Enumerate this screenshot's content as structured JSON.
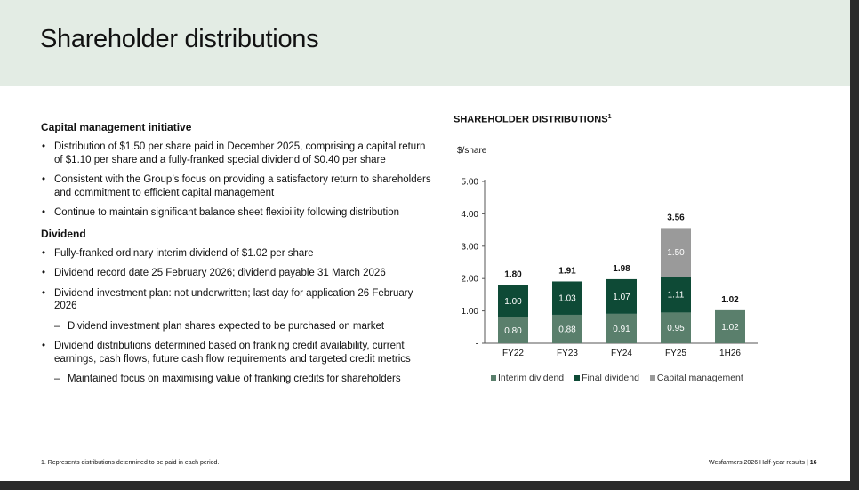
{
  "header": {
    "title": "Shareholder distributions"
  },
  "left": {
    "sections": [
      {
        "heading": "Capital management initiative",
        "items": [
          {
            "kind": "bullet",
            "text": "Distribution of $1.50 per share paid in December 2025, comprising a capital return of $1.10 per share and a fully-franked special dividend of $0.40 per share"
          },
          {
            "kind": "bullet",
            "text": "Consistent with the Group’s focus on providing a satisfactory return to shareholders and commitment to efficient capital management"
          },
          {
            "kind": "bullet",
            "text": "Continue to maintain significant balance sheet flexibility following distribution"
          }
        ]
      },
      {
        "heading": "Dividend",
        "items": [
          {
            "kind": "bullet",
            "text": "Fully-franked ordinary interim dividend of $1.02 per share"
          },
          {
            "kind": "bullet",
            "text": "Dividend record date 25 February 2026; dividend payable 31 March 2026"
          },
          {
            "kind": "bullet",
            "text": "Dividend investment plan: not underwritten; last day for application 26 February 2026"
          },
          {
            "kind": "dash",
            "text": "Dividend investment plan shares expected to be purchased on market"
          },
          {
            "kind": "bullet",
            "text": "Dividend distributions determined based on franking credit availability, current earnings, cash flows, future cash flow requirements and targeted credit metrics"
          },
          {
            "kind": "dash",
            "text": "Maintained focus on maximising value of franking credits for shareholders"
          }
        ]
      }
    ]
  },
  "chart_data": {
    "type": "bar",
    "stacked": true,
    "title": "SHAREHOLDER DISTRIBUTIONS",
    "title_sup": "1",
    "ylabel": "$/share",
    "ylim": [
      0,
      5
    ],
    "yticks": [
      "-",
      "1.00",
      "2.00",
      "3.00",
      "4.00",
      "5.00"
    ],
    "categories": [
      "FY22",
      "FY23",
      "FY24",
      "FY25",
      "1H26"
    ],
    "series": [
      {
        "name": "Interim dividend",
        "color": "#5a7f6c",
        "values": [
          0.8,
          0.88,
          0.91,
          0.95,
          1.02
        ],
        "labels": [
          "0.80",
          "0.88",
          "0.91",
          "0.95",
          "1.02"
        ]
      },
      {
        "name": "Final dividend",
        "color": "#0e4a36",
        "values": [
          1.0,
          1.03,
          1.07,
          1.11,
          0
        ],
        "labels": [
          "1.00",
          "1.03",
          "1.07",
          "1.11",
          ""
        ]
      },
      {
        "name": "Capital management",
        "color": "#9a9a9a",
        "values": [
          0,
          0,
          0,
          1.5,
          0
        ],
        "labels": [
          "",
          "",
          "",
          "1.50",
          ""
        ]
      }
    ],
    "totals": [
      "1.80",
      "1.91",
      "1.98",
      "3.56",
      "1.02"
    ],
    "legend_position": "bottom",
    "grid": false
  },
  "footer": {
    "footnote": "1.  Represents distributions determined to be paid in each period.",
    "source": "Wesfarmers 2026 Half-year results | ",
    "page": "16"
  }
}
